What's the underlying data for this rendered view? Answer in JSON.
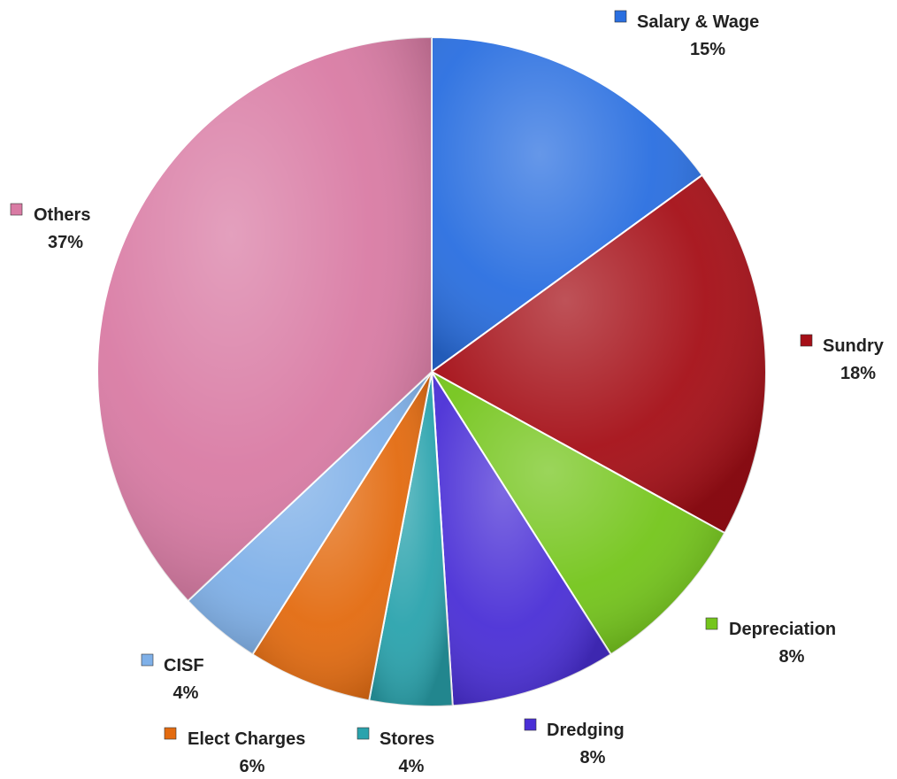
{
  "chart_data": {
    "type": "pie",
    "categories": [
      "Salary & Wage",
      "Sundry",
      "Depreciation",
      "Dredging",
      "Stores",
      "Elect Charges",
      "CISF",
      "Others"
    ],
    "values": [
      15,
      18,
      8,
      8,
      4,
      6,
      4,
      37
    ],
    "value_labels": [
      "15%",
      "18%",
      "8%",
      "8%",
      "4%",
      "6%",
      "4%",
      "37%"
    ],
    "colors": [
      "#2a6fe0",
      "#a50f17",
      "#74c51b",
      "#4a2fd6",
      "#2aa3ad",
      "#e36b10",
      "#7fb0e8",
      "#d97ba4"
    ],
    "start_angle_deg": 0,
    "direction": "clockwise",
    "legend": "labels-outside"
  }
}
